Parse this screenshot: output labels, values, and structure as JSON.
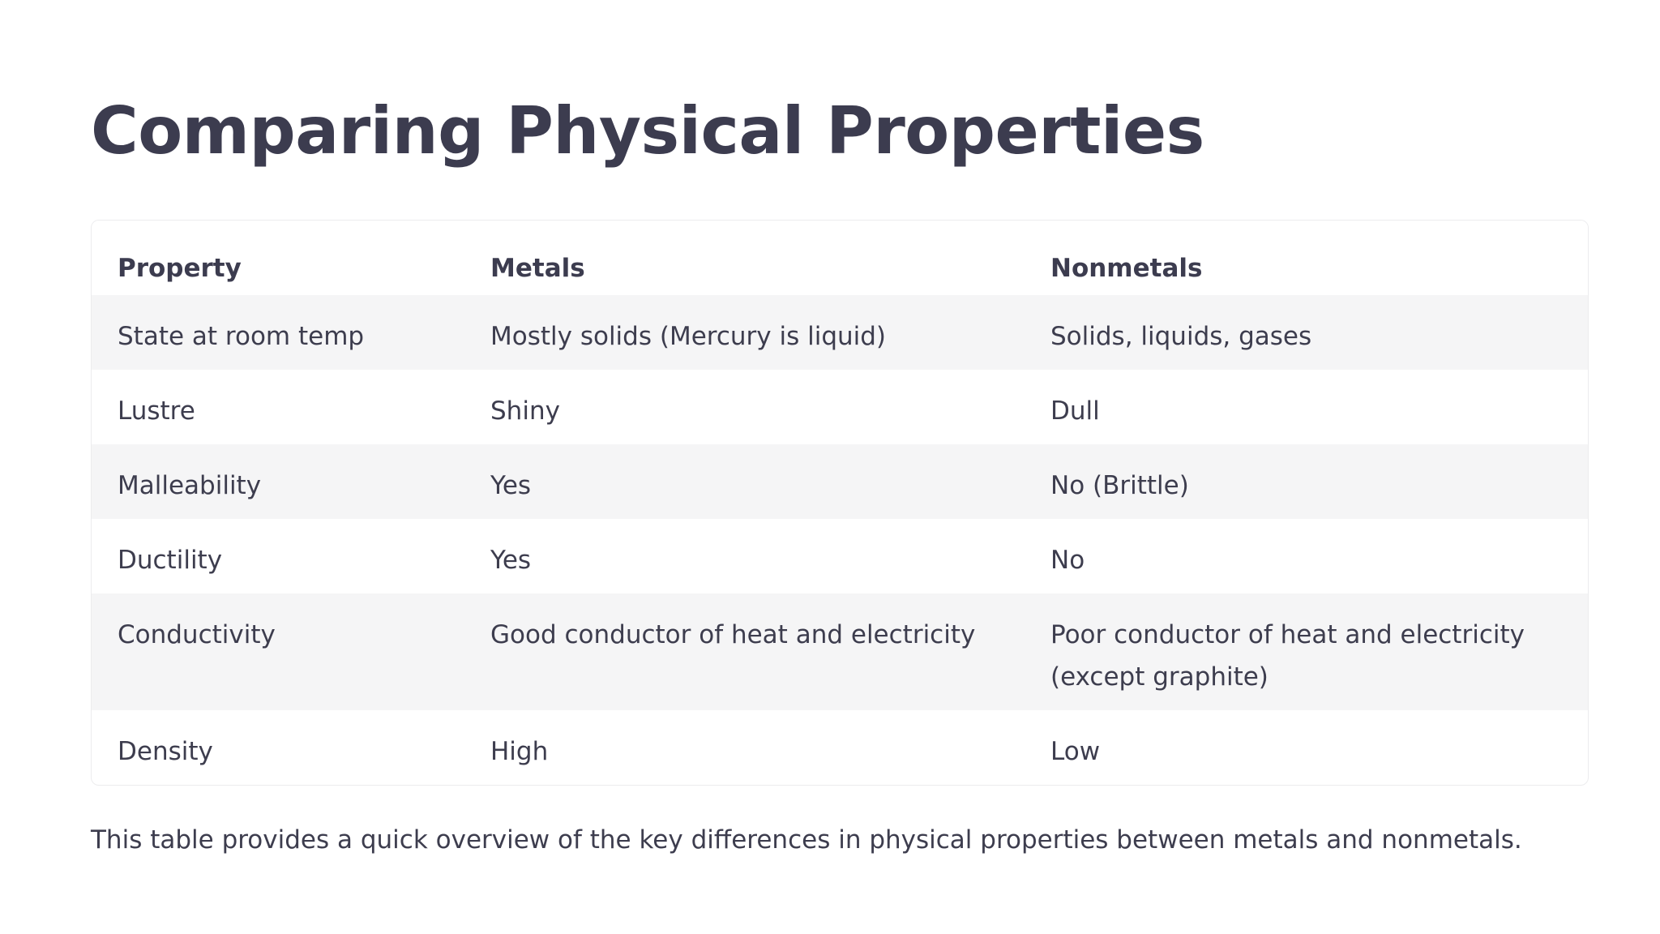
{
  "title": "Comparing Physical Properties",
  "table": {
    "headers": [
      "Property",
      "Metals",
      "Nonmetals"
    ],
    "rows": [
      [
        "State at room temp",
        "Mostly solids (Mercury is liquid)",
        "Solids, liquids, gases"
      ],
      [
        "Lustre",
        "Shiny",
        "Dull"
      ],
      [
        "Malleability",
        "Yes",
        "No (Brittle)"
      ],
      [
        "Ductility",
        "Yes",
        "No"
      ],
      [
        "Conductivity",
        "Good conductor of heat and electricity",
        "Poor conductor of heat and electricity (except graphite)"
      ],
      [
        "Density",
        "High",
        "Low"
      ]
    ]
  },
  "footnote": "This table provides a quick overview of the key differences in physical properties between metals and nonmetals.",
  "colors": {
    "text": "#3d3d4e",
    "row_shade": "#f5f5f6",
    "border": "#ececee",
    "background": "#ffffff"
  }
}
